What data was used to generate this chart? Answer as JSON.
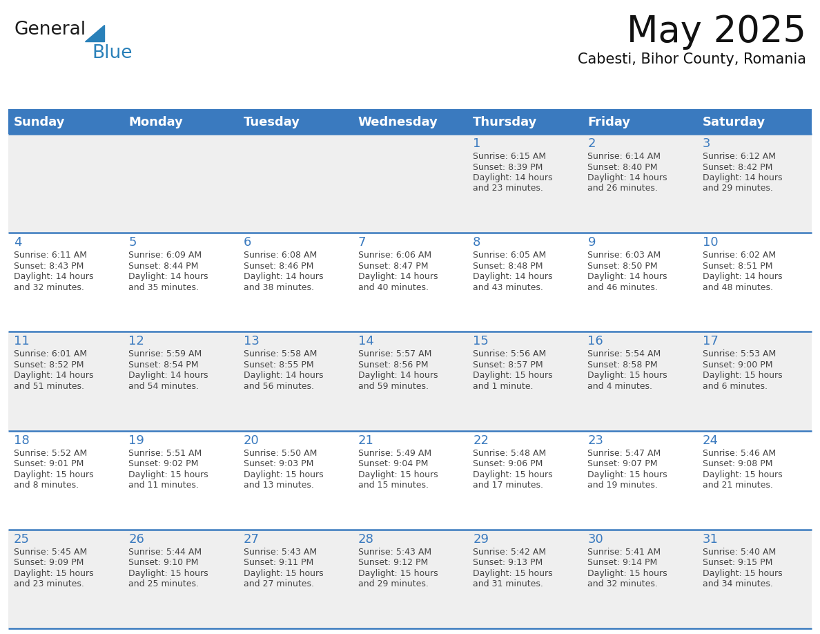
{
  "title": "May 2025",
  "subtitle": "Cabesti, Bihor County, Romania",
  "days_of_week": [
    "Sunday",
    "Monday",
    "Tuesday",
    "Wednesday",
    "Thursday",
    "Friday",
    "Saturday"
  ],
  "header_bg": "#3a7abf",
  "header_text_color": "#FFFFFF",
  "cell_bg_light": "#EFEFEF",
  "cell_bg_white": "#FFFFFF",
  "day_number_color": "#3a7abf",
  "text_color": "#444444",
  "line_color": "#3a7abf",
  "bg_color": "#FFFFFF",
  "calendar_data": [
    [
      null,
      null,
      null,
      null,
      {
        "day": 1,
        "sunrise": "6:15 AM",
        "sunset": "8:39 PM",
        "daylight1": "Daylight: 14 hours",
        "daylight2": "and 23 minutes."
      },
      {
        "day": 2,
        "sunrise": "6:14 AM",
        "sunset": "8:40 PM",
        "daylight1": "Daylight: 14 hours",
        "daylight2": "and 26 minutes."
      },
      {
        "day": 3,
        "sunrise": "6:12 AM",
        "sunset": "8:42 PM",
        "daylight1": "Daylight: 14 hours",
        "daylight2": "and 29 minutes."
      }
    ],
    [
      {
        "day": 4,
        "sunrise": "6:11 AM",
        "sunset": "8:43 PM",
        "daylight1": "Daylight: 14 hours",
        "daylight2": "and 32 minutes."
      },
      {
        "day": 5,
        "sunrise": "6:09 AM",
        "sunset": "8:44 PM",
        "daylight1": "Daylight: 14 hours",
        "daylight2": "and 35 minutes."
      },
      {
        "day": 6,
        "sunrise": "6:08 AM",
        "sunset": "8:46 PM",
        "daylight1": "Daylight: 14 hours",
        "daylight2": "and 38 minutes."
      },
      {
        "day": 7,
        "sunrise": "6:06 AM",
        "sunset": "8:47 PM",
        "daylight1": "Daylight: 14 hours",
        "daylight2": "and 40 minutes."
      },
      {
        "day": 8,
        "sunrise": "6:05 AM",
        "sunset": "8:48 PM",
        "daylight1": "Daylight: 14 hours",
        "daylight2": "and 43 minutes."
      },
      {
        "day": 9,
        "sunrise": "6:03 AM",
        "sunset": "8:50 PM",
        "daylight1": "Daylight: 14 hours",
        "daylight2": "and 46 minutes."
      },
      {
        "day": 10,
        "sunrise": "6:02 AM",
        "sunset": "8:51 PM",
        "daylight1": "Daylight: 14 hours",
        "daylight2": "and 48 minutes."
      }
    ],
    [
      {
        "day": 11,
        "sunrise": "6:01 AM",
        "sunset": "8:52 PM",
        "daylight1": "Daylight: 14 hours",
        "daylight2": "and 51 minutes."
      },
      {
        "day": 12,
        "sunrise": "5:59 AM",
        "sunset": "8:54 PM",
        "daylight1": "Daylight: 14 hours",
        "daylight2": "and 54 minutes."
      },
      {
        "day": 13,
        "sunrise": "5:58 AM",
        "sunset": "8:55 PM",
        "daylight1": "Daylight: 14 hours",
        "daylight2": "and 56 minutes."
      },
      {
        "day": 14,
        "sunrise": "5:57 AM",
        "sunset": "8:56 PM",
        "daylight1": "Daylight: 14 hours",
        "daylight2": "and 59 minutes."
      },
      {
        "day": 15,
        "sunrise": "5:56 AM",
        "sunset": "8:57 PM",
        "daylight1": "Daylight: 15 hours",
        "daylight2": "and 1 minute."
      },
      {
        "day": 16,
        "sunrise": "5:54 AM",
        "sunset": "8:58 PM",
        "daylight1": "Daylight: 15 hours",
        "daylight2": "and 4 minutes."
      },
      {
        "day": 17,
        "sunrise": "5:53 AM",
        "sunset": "9:00 PM",
        "daylight1": "Daylight: 15 hours",
        "daylight2": "and 6 minutes."
      }
    ],
    [
      {
        "day": 18,
        "sunrise": "5:52 AM",
        "sunset": "9:01 PM",
        "daylight1": "Daylight: 15 hours",
        "daylight2": "and 8 minutes."
      },
      {
        "day": 19,
        "sunrise": "5:51 AM",
        "sunset": "9:02 PM",
        "daylight1": "Daylight: 15 hours",
        "daylight2": "and 11 minutes."
      },
      {
        "day": 20,
        "sunrise": "5:50 AM",
        "sunset": "9:03 PM",
        "daylight1": "Daylight: 15 hours",
        "daylight2": "and 13 minutes."
      },
      {
        "day": 21,
        "sunrise": "5:49 AM",
        "sunset": "9:04 PM",
        "daylight1": "Daylight: 15 hours",
        "daylight2": "and 15 minutes."
      },
      {
        "day": 22,
        "sunrise": "5:48 AM",
        "sunset": "9:06 PM",
        "daylight1": "Daylight: 15 hours",
        "daylight2": "and 17 minutes."
      },
      {
        "day": 23,
        "sunrise": "5:47 AM",
        "sunset": "9:07 PM",
        "daylight1": "Daylight: 15 hours",
        "daylight2": "and 19 minutes."
      },
      {
        "day": 24,
        "sunrise": "5:46 AM",
        "sunset": "9:08 PM",
        "daylight1": "Daylight: 15 hours",
        "daylight2": "and 21 minutes."
      }
    ],
    [
      {
        "day": 25,
        "sunrise": "5:45 AM",
        "sunset": "9:09 PM",
        "daylight1": "Daylight: 15 hours",
        "daylight2": "and 23 minutes."
      },
      {
        "day": 26,
        "sunrise": "5:44 AM",
        "sunset": "9:10 PM",
        "daylight1": "Daylight: 15 hours",
        "daylight2": "and 25 minutes."
      },
      {
        "day": 27,
        "sunrise": "5:43 AM",
        "sunset": "9:11 PM",
        "daylight1": "Daylight: 15 hours",
        "daylight2": "and 27 minutes."
      },
      {
        "day": 28,
        "sunrise": "5:43 AM",
        "sunset": "9:12 PM",
        "daylight1": "Daylight: 15 hours",
        "daylight2": "and 29 minutes."
      },
      {
        "day": 29,
        "sunrise": "5:42 AM",
        "sunset": "9:13 PM",
        "daylight1": "Daylight: 15 hours",
        "daylight2": "and 31 minutes."
      },
      {
        "day": 30,
        "sunrise": "5:41 AM",
        "sunset": "9:14 PM",
        "daylight1": "Daylight: 15 hours",
        "daylight2": "and 32 minutes."
      },
      {
        "day": 31,
        "sunrise": "5:40 AM",
        "sunset": "9:15 PM",
        "daylight1": "Daylight: 15 hours",
        "daylight2": "and 34 minutes."
      }
    ]
  ],
  "logo_text_general": "General",
  "logo_text_blue": "Blue",
  "logo_color_general": "#1a1a1a",
  "logo_color_blue": "#2980b9",
  "logo_triangle_color": "#2980b9",
  "title_fontsize": 38,
  "subtitle_fontsize": 15,
  "header_fontsize": 13,
  "day_num_fontsize": 13,
  "cell_text_fontsize": 9
}
